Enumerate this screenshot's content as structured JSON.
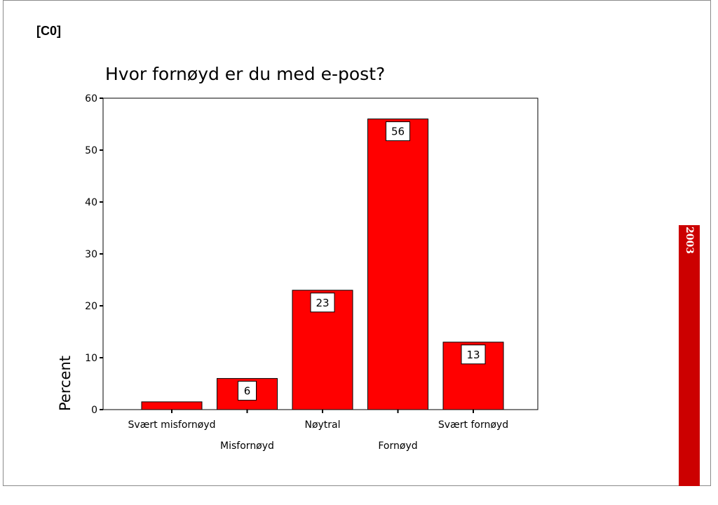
{
  "slide_label": "[C0]",
  "side_tag": "2003",
  "colors": {
    "bar": "#ff0000",
    "bar_edge": "#000000",
    "side_bar": "#cc0000"
  },
  "chart_data": {
    "type": "bar",
    "title": "Hvor fornøyd er du med e-post?",
    "xlabel": "",
    "ylabel": "Percent",
    "ylim": [
      0,
      60
    ],
    "yticks": [
      0,
      10,
      20,
      30,
      40,
      50,
      60
    ],
    "categories": [
      "Svært misfornøyd",
      "Misfornøyd",
      "Nøytral",
      "Fornøyd",
      "Svært fornøyd"
    ],
    "values": [
      1.5,
      6,
      23,
      56,
      13
    ],
    "data_labels": [
      "",
      "6",
      "23",
      "56",
      "13"
    ],
    "grid": false,
    "legend": "none"
  }
}
